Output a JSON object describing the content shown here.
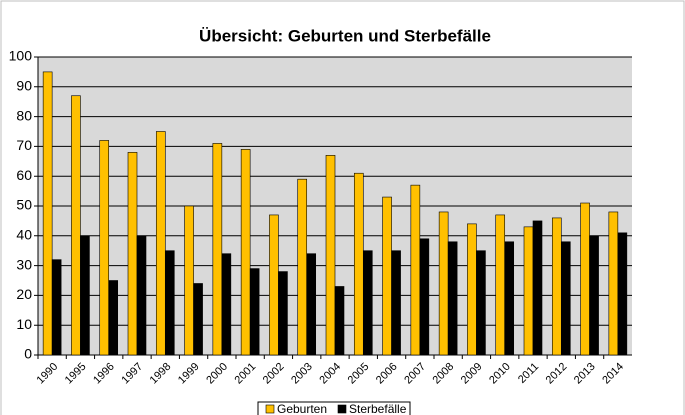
{
  "chart_data": {
    "type": "bar",
    "title": "Übersicht: Geburten und Sterbefälle",
    "categories": [
      "1990",
      "1995",
      "1996",
      "1997",
      "1998",
      "1999",
      "2000",
      "2001",
      "2002",
      "2003",
      "2004",
      "2005",
      "2006",
      "2007",
      "2008",
      "2009",
      "2010",
      "2011",
      "2012",
      "2013",
      "2014"
    ],
    "series": [
      {
        "name": "Geburten",
        "color": "#ffc000",
        "values": [
          95,
          87,
          72,
          68,
          75,
          50,
          71,
          69,
          47,
          59,
          67,
          61,
          53,
          57,
          48,
          44,
          47,
          43,
          46,
          51,
          48
        ]
      },
      {
        "name": "Sterbefälle",
        "color": "#000000",
        "values": [
          32,
          40,
          25,
          40,
          35,
          24,
          34,
          29,
          28,
          34,
          23,
          35,
          35,
          39,
          38,
          35,
          38,
          45,
          38,
          40,
          41
        ]
      }
    ],
    "ylim": [
      0,
      100
    ],
    "yticks": [
      0,
      10,
      20,
      30,
      40,
      50,
      60,
      70,
      80,
      90,
      100
    ],
    "grid": true,
    "legend": "bottom"
  }
}
